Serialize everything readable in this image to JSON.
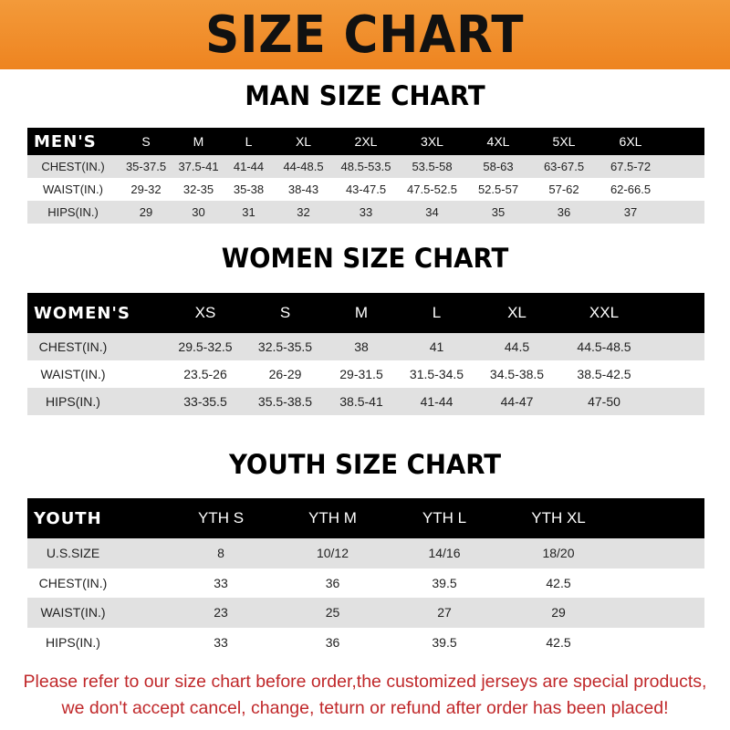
{
  "banner_title": "SIZE CHART",
  "men": {
    "title": "MAN SIZE CHART",
    "header": [
      "MEN'S",
      "S",
      "M",
      "L",
      "XL",
      "2XL",
      "3XL",
      "4XL",
      "5XL",
      "6XL"
    ],
    "rows": [
      [
        "CHEST(IN.)",
        "35-37.5",
        "37.5-41",
        "41-44",
        "44-48.5",
        "48.5-53.5",
        "53.5-58",
        "58-63",
        "63-67.5",
        "67.5-72"
      ],
      [
        "WAIST(IN.)",
        "29-32",
        "32-35",
        "35-38",
        "38-43",
        "43-47.5",
        "47.5-52.5",
        "52.5-57",
        "57-62",
        "62-66.5"
      ],
      [
        "HIPS(IN.)",
        "29",
        "30",
        "31",
        "32",
        "33",
        "34",
        "35",
        "36",
        "37"
      ]
    ]
  },
  "women": {
    "title": "WOMEN SIZE CHART",
    "header": [
      "WOMEN'S",
      "XS",
      "S",
      "M",
      "L",
      "XL",
      "XXL"
    ],
    "rows": [
      [
        "CHEST(IN.)",
        "29.5-32.5",
        "32.5-35.5",
        "38",
        "41",
        "44.5",
        "44.5-48.5"
      ],
      [
        "WAIST(IN.)",
        "23.5-26",
        "26-29",
        "29-31.5",
        "31.5-34.5",
        "34.5-38.5",
        "38.5-42.5"
      ],
      [
        "HIPS(IN.)",
        "33-35.5",
        "35.5-38.5",
        "38.5-41",
        "41-44",
        "44-47",
        "47-50"
      ]
    ]
  },
  "youth": {
    "title": "YOUTH SIZE CHART",
    "header": [
      "YOUTH",
      "YTH S",
      "YTH M",
      "YTH L",
      "YTH XL"
    ],
    "rows": [
      [
        "U.S.SIZE",
        "8",
        "10/12",
        "14/16",
        "18/20"
      ],
      [
        "CHEST(IN.)",
        "33",
        "36",
        "39.5",
        "42.5"
      ],
      [
        "WAIST(IN.)",
        "23",
        "25",
        "27",
        "29"
      ],
      [
        "HIPS(IN.)",
        "33",
        "36",
        "39.5",
        "42.5"
      ]
    ]
  },
  "notice": {
    "line1": "Please refer to our size chart before order,the customized jerseys are special products,",
    "line2": "we don't accept cancel, change, teturn or refund after order has been placed!"
  },
  "colors": {
    "banner": "#ef8a24",
    "header_row": "#000000",
    "stripe": "#e1e1e1",
    "notice": "#c0282a"
  }
}
